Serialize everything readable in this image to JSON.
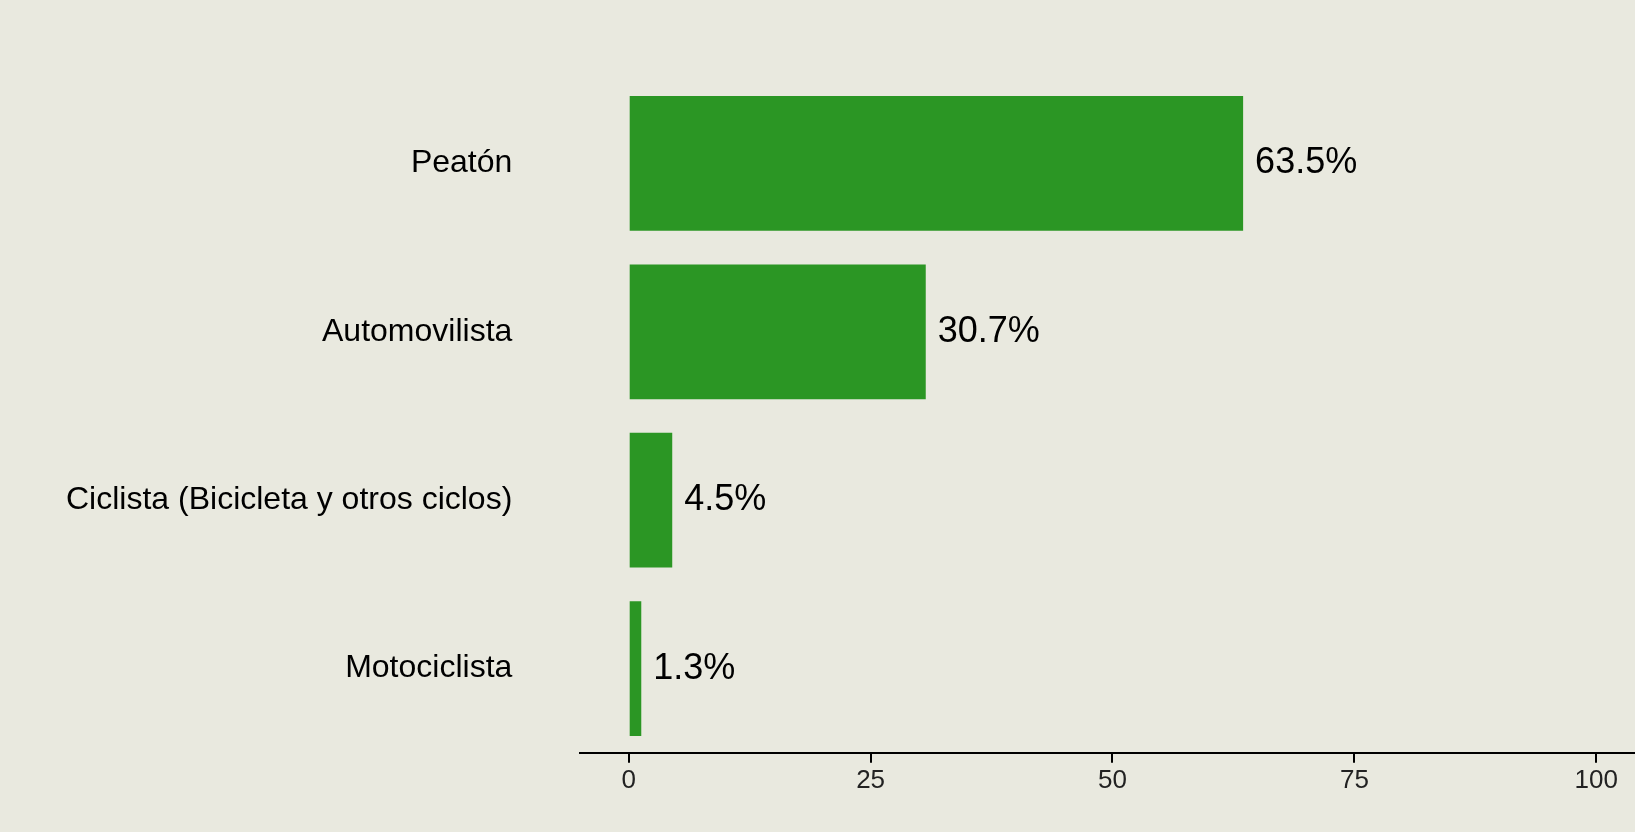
{
  "chart_data": {
    "type": "bar",
    "orientation": "horizontal",
    "categories": [
      "Peatón",
      "Automovilista",
      "Ciclista (Bicicleta y otros ciclos)",
      "Motociclista"
    ],
    "values": [
      63.5,
      30.7,
      4.5,
      1.3
    ],
    "value_labels": [
      "63.5%",
      "30.7%",
      "4.5%",
      "1.3%"
    ],
    "color": "#2b9624",
    "xlim": [
      -5,
      104
    ],
    "xticks": [
      0,
      25,
      50,
      75,
      100
    ]
  }
}
